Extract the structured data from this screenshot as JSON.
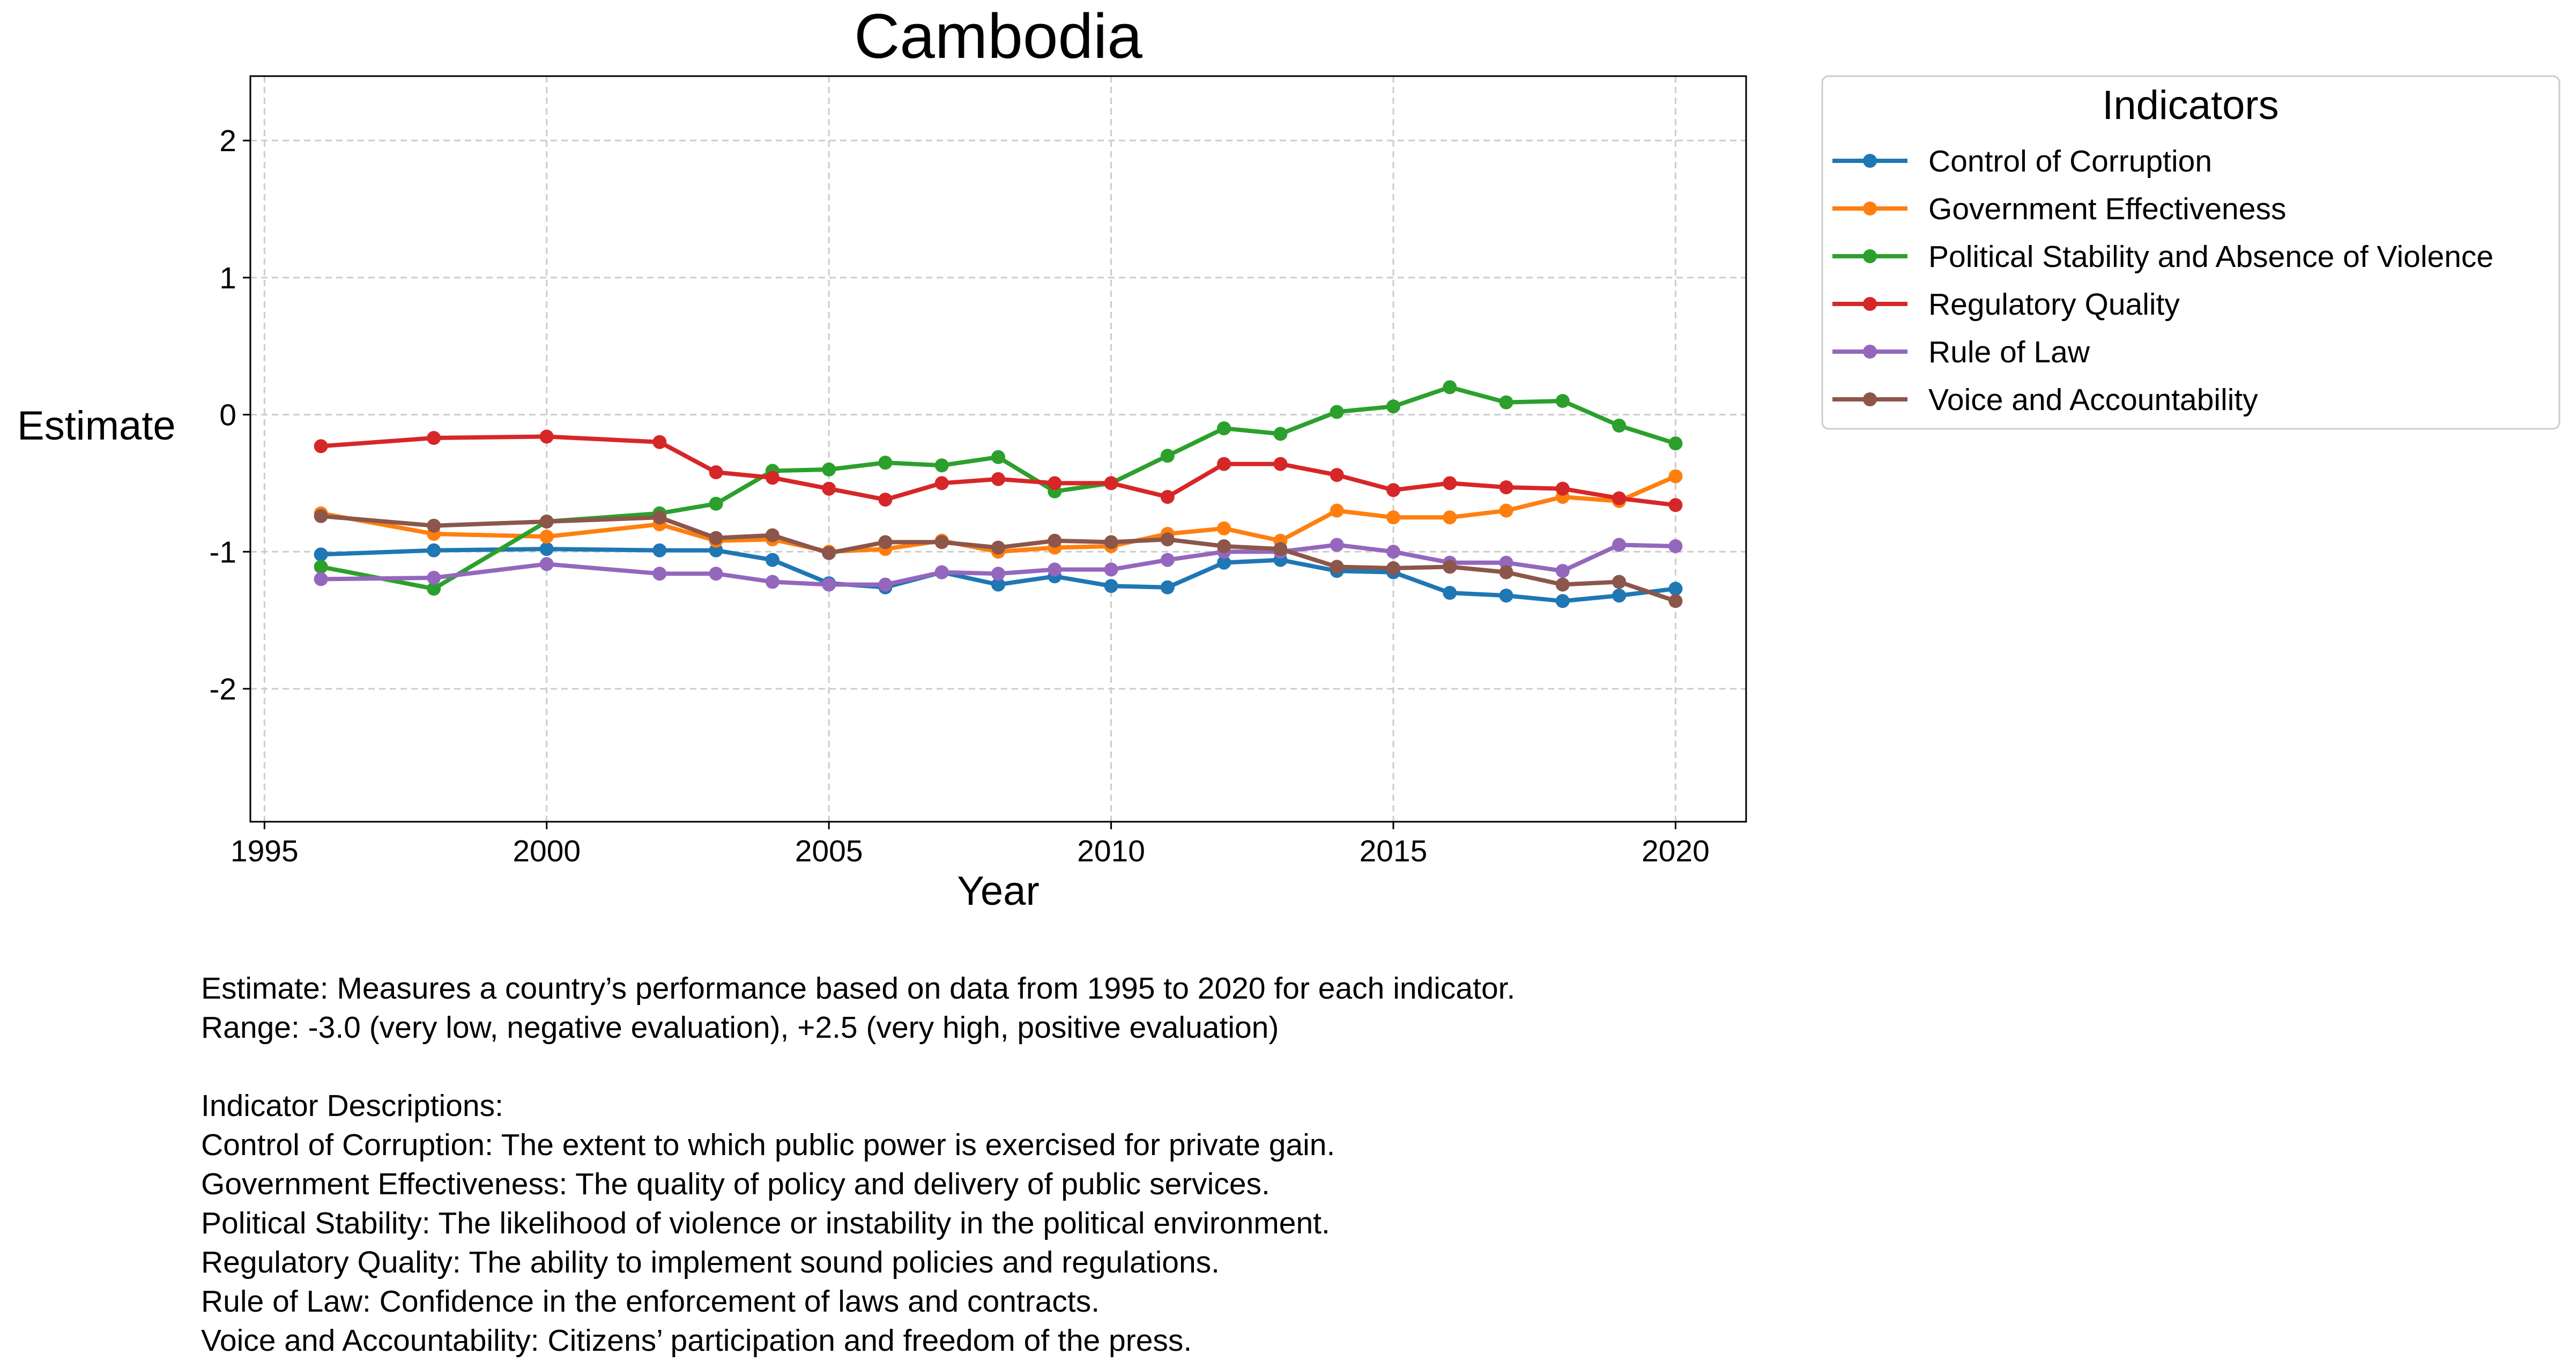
{
  "chart_data": {
    "type": "line",
    "title": "Cambodia",
    "xlabel": "Year",
    "ylabel": "Estimate",
    "xlim": [
      1994.75,
      2021.25
    ],
    "ylim": [
      -2.97,
      2.47
    ],
    "xticks": [
      1995,
      2000,
      2005,
      2010,
      2015,
      2020
    ],
    "yticks": [
      -2,
      -1,
      0,
      1,
      2
    ],
    "grid": true,
    "legend": {
      "title": "Indicators",
      "position": "outside-top-right"
    },
    "x": [
      1996,
      1998,
      2000,
      2002,
      2003,
      2004,
      2005,
      2006,
      2007,
      2008,
      2009,
      2010,
      2011,
      2012,
      2013,
      2014,
      2015,
      2016,
      2017,
      2018,
      2019,
      2020
    ],
    "series": [
      {
        "name": "Control of Corruption",
        "color": "#1f77b4",
        "values": [
          -1.02,
          -0.99,
          -0.98,
          -0.99,
          -0.99,
          -1.06,
          -1.23,
          -1.26,
          -1.15,
          -1.24,
          -1.18,
          -1.25,
          -1.26,
          -1.08,
          -1.06,
          -1.14,
          -1.15,
          -1.3,
          -1.32,
          -1.36,
          -1.32,
          -1.27
        ]
      },
      {
        "name": "Government Effectiveness",
        "color": "#ff7f0e",
        "values": [
          -0.72,
          -0.87,
          -0.89,
          -0.8,
          -0.92,
          -0.91,
          -1.0,
          -0.98,
          -0.92,
          -1.0,
          -0.97,
          -0.96,
          -0.87,
          -0.83,
          -0.92,
          -0.7,
          -0.75,
          -0.75,
          -0.7,
          -0.6,
          -0.63,
          -0.45
        ]
      },
      {
        "name": "Political Stability and Absence of Violence",
        "color": "#2ca02c",
        "values": [
          -1.11,
          -1.27,
          -0.78,
          -0.72,
          -0.65,
          -0.41,
          -0.4,
          -0.35,
          -0.37,
          -0.31,
          -0.56,
          -0.5,
          -0.3,
          -0.1,
          -0.14,
          0.02,
          0.06,
          0.2,
          0.09,
          0.1,
          -0.08,
          -0.21
        ]
      },
      {
        "name": "Regulatory Quality",
        "color": "#d62728",
        "values": [
          -0.23,
          -0.17,
          -0.16,
          -0.2,
          -0.42,
          -0.46,
          -0.54,
          -0.62,
          -0.5,
          -0.47,
          -0.5,
          -0.5,
          -0.6,
          -0.36,
          -0.36,
          -0.44,
          -0.55,
          -0.5,
          -0.53,
          -0.54,
          -0.61,
          -0.66
        ]
      },
      {
        "name": "Rule of Law",
        "color": "#9467bd",
        "values": [
          -1.2,
          -1.19,
          -1.09,
          -1.16,
          -1.16,
          -1.22,
          -1.24,
          -1.24,
          -1.15,
          -1.16,
          -1.13,
          -1.13,
          -1.06,
          -1.0,
          -1.0,
          -0.95,
          -1.0,
          -1.08,
          -1.08,
          -1.14,
          -0.95,
          -0.96
        ]
      },
      {
        "name": "Voice and Accountability",
        "color": "#8c564b",
        "values": [
          -0.74,
          -0.81,
          -0.78,
          -0.75,
          -0.9,
          -0.88,
          -1.01,
          -0.93,
          -0.93,
          -0.97,
          -0.92,
          -0.93,
          -0.91,
          -0.96,
          -0.98,
          -1.11,
          -1.12,
          -1.11,
          -1.15,
          -1.24,
          -1.22,
          -1.36
        ]
      }
    ]
  },
  "notes": {
    "estimate_line": "Estimate: Measures a country’s performance based on data from 1995 to 2020 for each indicator.",
    "range_line": "Range: -3.0 (very low, negative evaluation), +2.5 (very high, positive evaluation)",
    "desc_header": "Indicator Descriptions:",
    "descriptions": [
      "Control of Corruption: The extent to which public power is exercised for private gain.",
      "Government Effectiveness: The quality of policy and delivery of public services.",
      "Political Stability: The likelihood of violence or instability in the political environment.",
      "Regulatory Quality: The ability to implement sound policies and regulations.",
      "Rule of Law: Confidence in the enforcement of laws and contracts.",
      "Voice and Accountability: Citizens’ participation and freedom of the press."
    ]
  }
}
